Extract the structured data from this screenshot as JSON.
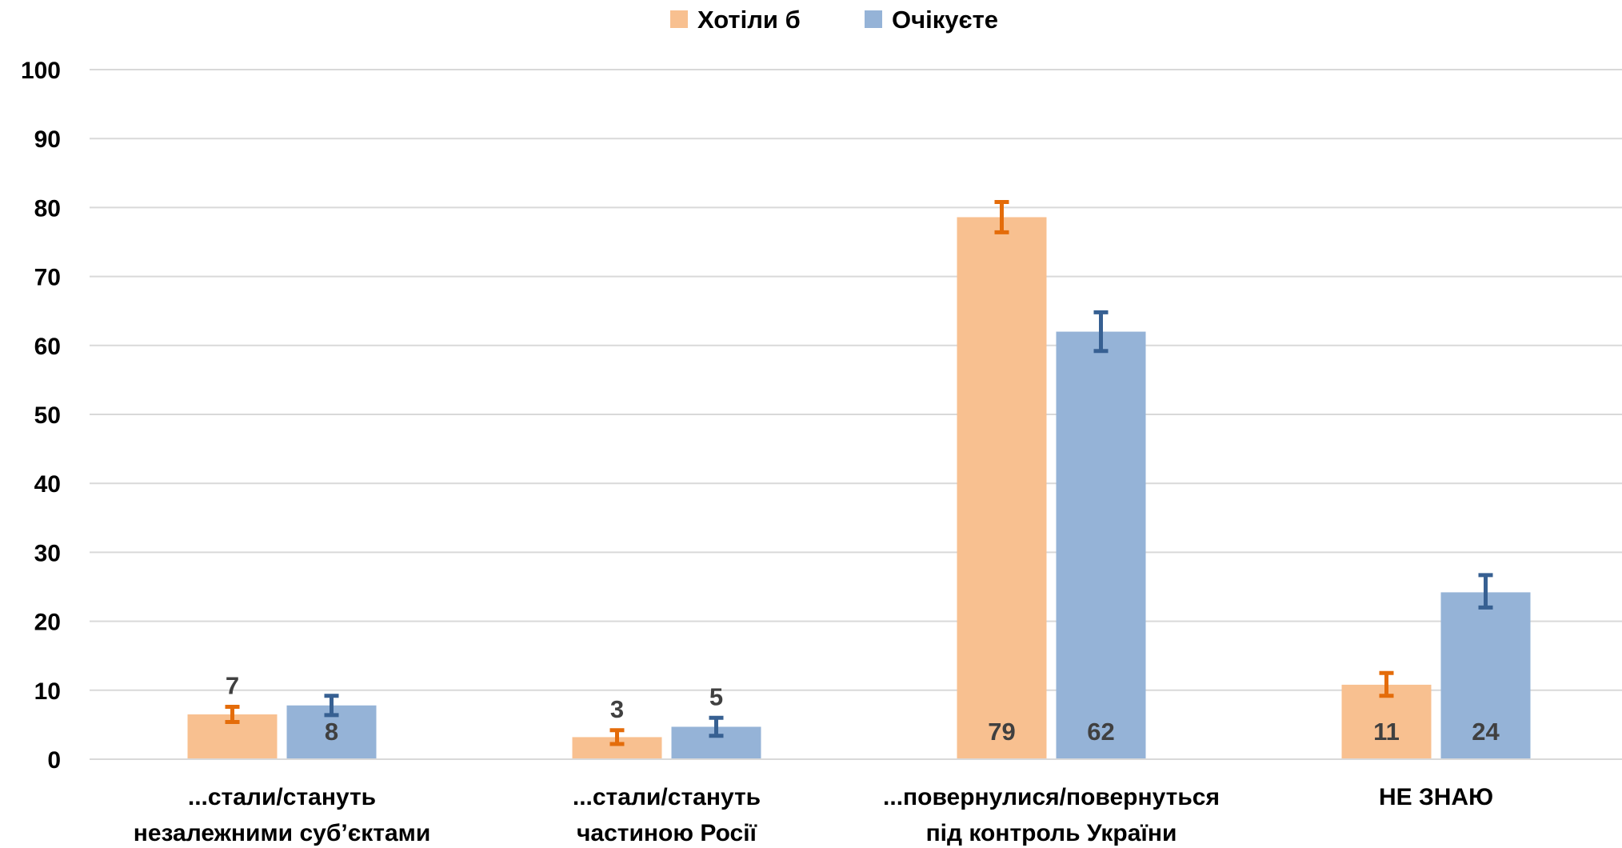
{
  "chart_data": {
    "type": "bar",
    "categories": [
      [
        "...стали/стануть",
        "незалежними суб’єктами"
      ],
      [
        "...стали/стануть",
        "частиною Росії"
      ],
      [
        "...повернулися/повернуться",
        "під контроль України"
      ],
      [
        "НЕ ЗНАЮ"
      ]
    ],
    "series": [
      {
        "name": "Хотіли б",
        "color": "#F8C090",
        "error_color": "#E46C0A",
        "values": [
          6.5,
          3.2,
          78.6,
          10.8
        ],
        "labels": [
          "7",
          "3",
          "79",
          "11"
        ],
        "error": [
          [
            5.4,
            7.6
          ],
          [
            2.2,
            4.2
          ],
          [
            76.4,
            80.8
          ],
          [
            9.2,
            12.5
          ]
        ],
        "label_position": [
          "above",
          "above",
          "inside",
          "inside"
        ]
      },
      {
        "name": "Очікуєте",
        "color": "#95B3D7",
        "error_color": "#376092",
        "values": [
          7.8,
          4.7,
          62.0,
          24.2
        ],
        "labels": [
          "8",
          "5",
          "62",
          "24"
        ],
        "error": [
          [
            6.4,
            9.2
          ],
          [
            3.4,
            6.0
          ],
          [
            59.2,
            64.8
          ],
          [
            22.0,
            26.7
          ]
        ],
        "label_position": [
          "inside",
          "above",
          "inside",
          "inside"
        ]
      }
    ],
    "ylim": [
      0,
      100
    ],
    "yticks": [
      0,
      10,
      20,
      30,
      40,
      50,
      60,
      70,
      80,
      90,
      100
    ],
    "grid": true,
    "legend": "top-center",
    "title": "",
    "xlabel": "",
    "ylabel": ""
  }
}
